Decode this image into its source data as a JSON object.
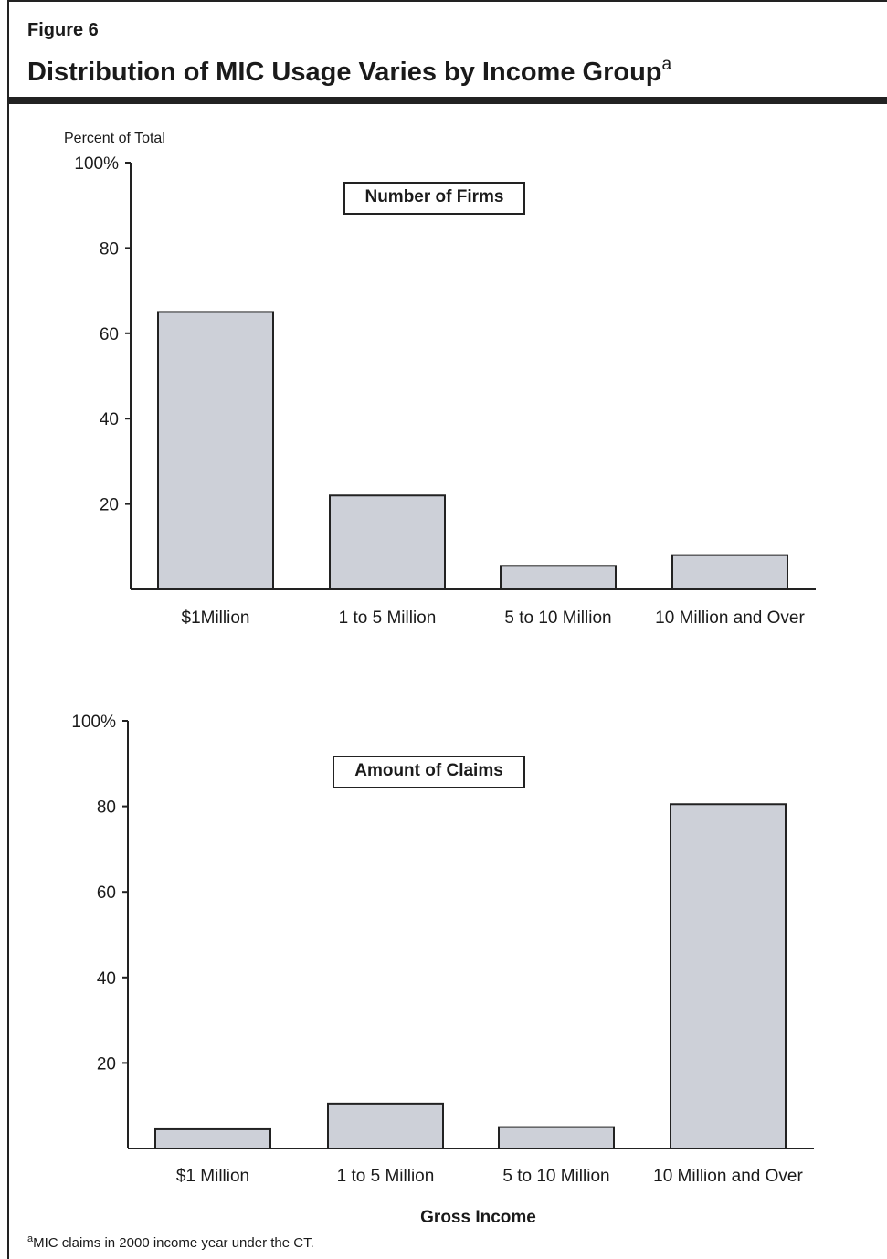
{
  "figure": {
    "label": "Figure 6",
    "title": "Distribution of MIC Usage Varies by Income Group",
    "title_superscript": "a"
  },
  "footnote": {
    "marker": "a",
    "text": "MIC claims in 2000 income year under the CT."
  },
  "colors": {
    "bar_fill": "#cdd0d8",
    "bar_stroke": "#222222",
    "axis": "#222222"
  },
  "chart_data": [
    {
      "type": "bar",
      "title": "Number of Firms",
      "ylabel": "Percent of Total",
      "xlabel": "",
      "ylim": [
        0,
        100
      ],
      "yticks": [
        "20",
        "40",
        "60",
        "80",
        "100%"
      ],
      "categories": [
        "$1Million",
        "1 to 5 Million",
        "5 to 10 Million",
        "10 Million and Over"
      ],
      "values": [
        65,
        22,
        5.5,
        8
      ],
      "grid": false
    },
    {
      "type": "bar",
      "title": "Amount of Claims",
      "ylabel": "",
      "xlabel": "Gross Income",
      "ylim": [
        0,
        100
      ],
      "yticks": [
        "20",
        "40",
        "60",
        "80",
        "100%"
      ],
      "categories": [
        "$1 Million",
        "1 to 5 Million",
        "5 to 10 Million",
        "10 Million and Over"
      ],
      "values": [
        4.5,
        10.5,
        5,
        80.5
      ],
      "grid": false
    }
  ]
}
